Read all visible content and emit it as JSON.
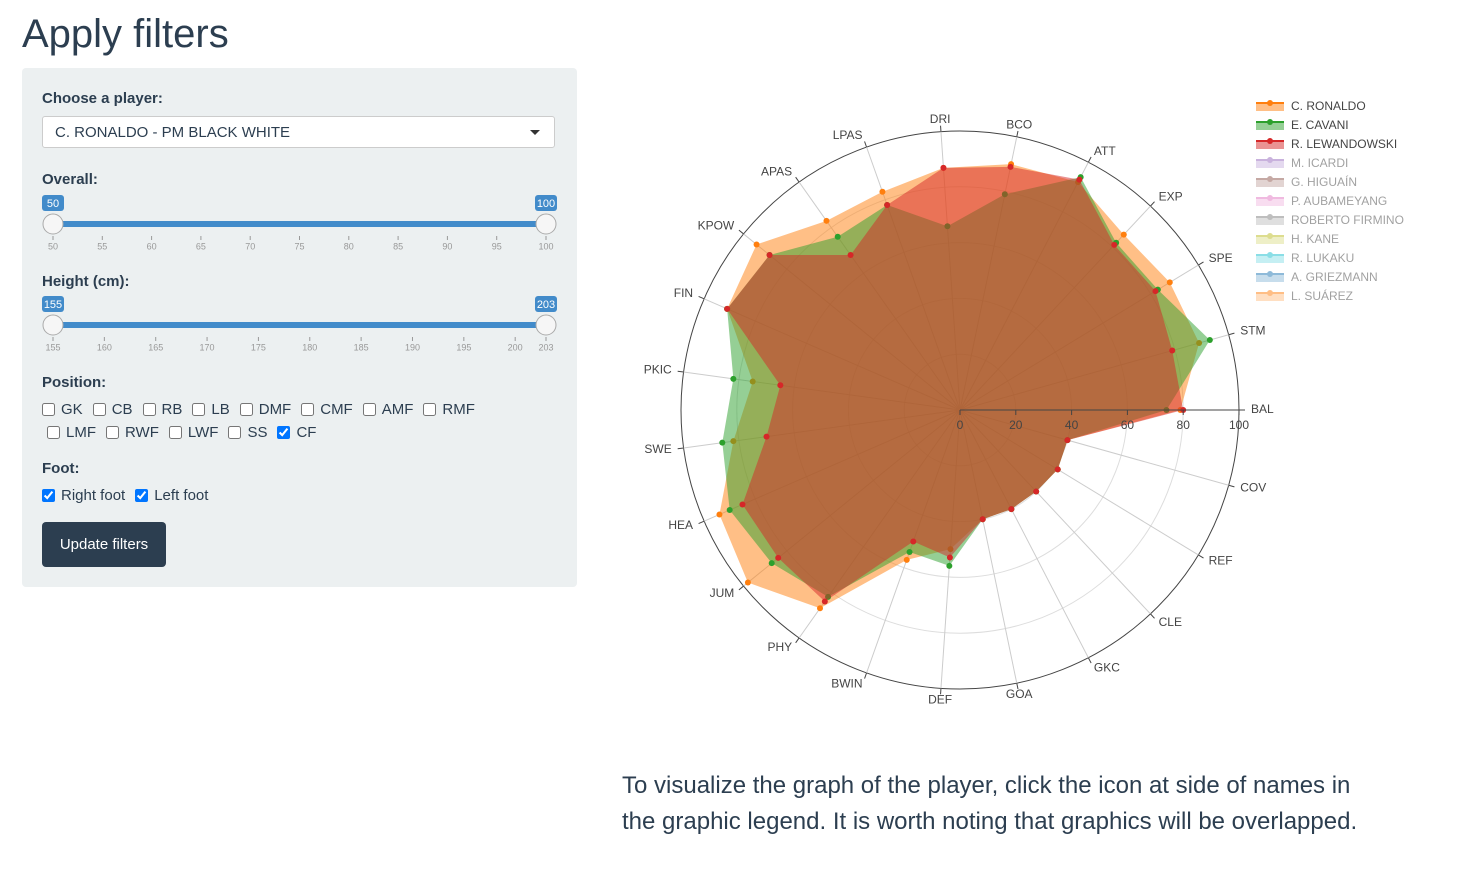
{
  "header": {
    "title": "Apply filters"
  },
  "filters": {
    "player": {
      "label": "Choose a player:",
      "selected": "C. RONALDO - PM BLACK WHITE"
    },
    "overall": {
      "label": "Overall:",
      "min": 50,
      "max": 100,
      "from": 50,
      "to": 100,
      "ticks": [
        50,
        55,
        60,
        65,
        70,
        75,
        80,
        85,
        90,
        95,
        100
      ]
    },
    "height": {
      "label": "Height (cm):",
      "min": 155,
      "max": 203,
      "from": 155,
      "to": 203,
      "ticks": [
        155,
        160,
        165,
        170,
        175,
        180,
        185,
        190,
        195,
        200,
        203
      ]
    },
    "position": {
      "label": "Position:",
      "options": [
        {
          "label": "GK",
          "checked": false
        },
        {
          "label": "CB",
          "checked": false
        },
        {
          "label": "RB",
          "checked": false
        },
        {
          "label": "LB",
          "checked": false
        },
        {
          "label": "DMF",
          "checked": false
        },
        {
          "label": "CMF",
          "checked": false
        },
        {
          "label": "AMF",
          "checked": false
        },
        {
          "label": "RMF",
          "checked": false
        },
        {
          "label": "LMF",
          "checked": false
        },
        {
          "label": "RWF",
          "checked": false
        },
        {
          "label": "LWF",
          "checked": false
        },
        {
          "label": "SS",
          "checked": false
        },
        {
          "label": "CF",
          "checked": true
        }
      ]
    },
    "foot": {
      "label": "Foot:",
      "options": [
        {
          "label": "Right foot",
          "checked": true
        },
        {
          "label": "Left foot",
          "checked": true
        }
      ]
    },
    "button": "Update filters"
  },
  "chart_data": {
    "type": "radar",
    "categories": [
      "BAL",
      "STM",
      "SPE",
      "EXP",
      "ATT",
      "BCO",
      "DRI",
      "LPAS",
      "APAS",
      "KPOW",
      "FIN",
      "PKIC",
      "SWE",
      "HEA",
      "JUM",
      "PHY",
      "BWIN",
      "DEF",
      "GOA",
      "GKC",
      "CLE",
      "REF",
      "COV"
    ],
    "series": [
      {
        "name": "C. RONALDO",
        "color": "#ff7f0e",
        "values": [
          79,
          89,
          88,
          86,
          92,
          90,
          87,
          83,
          83,
          94,
          91,
          75,
          82,
          94,
          98,
          87,
          57,
          50,
          40,
          40,
          40,
          41,
          40
        ]
      },
      {
        "name": "E. CAVANI",
        "color": "#2ca02c",
        "values": [
          74,
          93,
          83,
          82,
          94,
          79,
          66,
          78,
          76,
          88,
          91,
          82,
          86,
          90,
          87,
          82,
          54,
          56,
          40,
          40,
          40,
          41,
          40
        ]
      },
      {
        "name": "R. LEWANDOWSKI",
        "color": "#d62728",
        "values": [
          80,
          79,
          82,
          81,
          93,
          89,
          87,
          78,
          68,
          88,
          91,
          65,
          70,
          85,
          84,
          84,
          50,
          53,
          40,
          40,
          40,
          41,
          40
        ]
      },
      {
        "name": "M. ICARDI",
        "color": "#9467bd",
        "visible": "legendonly"
      },
      {
        "name": "G. HIGUAÍN",
        "color": "#8c564b",
        "visible": "legendonly"
      },
      {
        "name": "P. AUBAMEYANG",
        "color": "#e377c2",
        "visible": "legendonly"
      },
      {
        "name": "ROBERTO FIRMINO",
        "color": "#7f7f7f",
        "visible": "legendonly"
      },
      {
        "name": "H. KANE",
        "color": "#bcbd22",
        "visible": "legendonly"
      },
      {
        "name": "R. LUKAKU",
        "color": "#17becf",
        "visible": "legendonly"
      },
      {
        "name": "A. GRIEZMANN",
        "color": "#1f77b4",
        "visible": "legendonly"
      },
      {
        "name": "L. SUÁREZ",
        "color": "#ff7f0e",
        "visible": "legendonly"
      }
    ],
    "rlim": [
      0,
      100
    ],
    "rticks": [
      0,
      20,
      40,
      60,
      80,
      100
    ],
    "grid": true,
    "legend": "top-right"
  },
  "note": "To visualize the graph of the player, click the icon at side of names in the graphic legend. It is worth noting that graphics will be overlapped."
}
